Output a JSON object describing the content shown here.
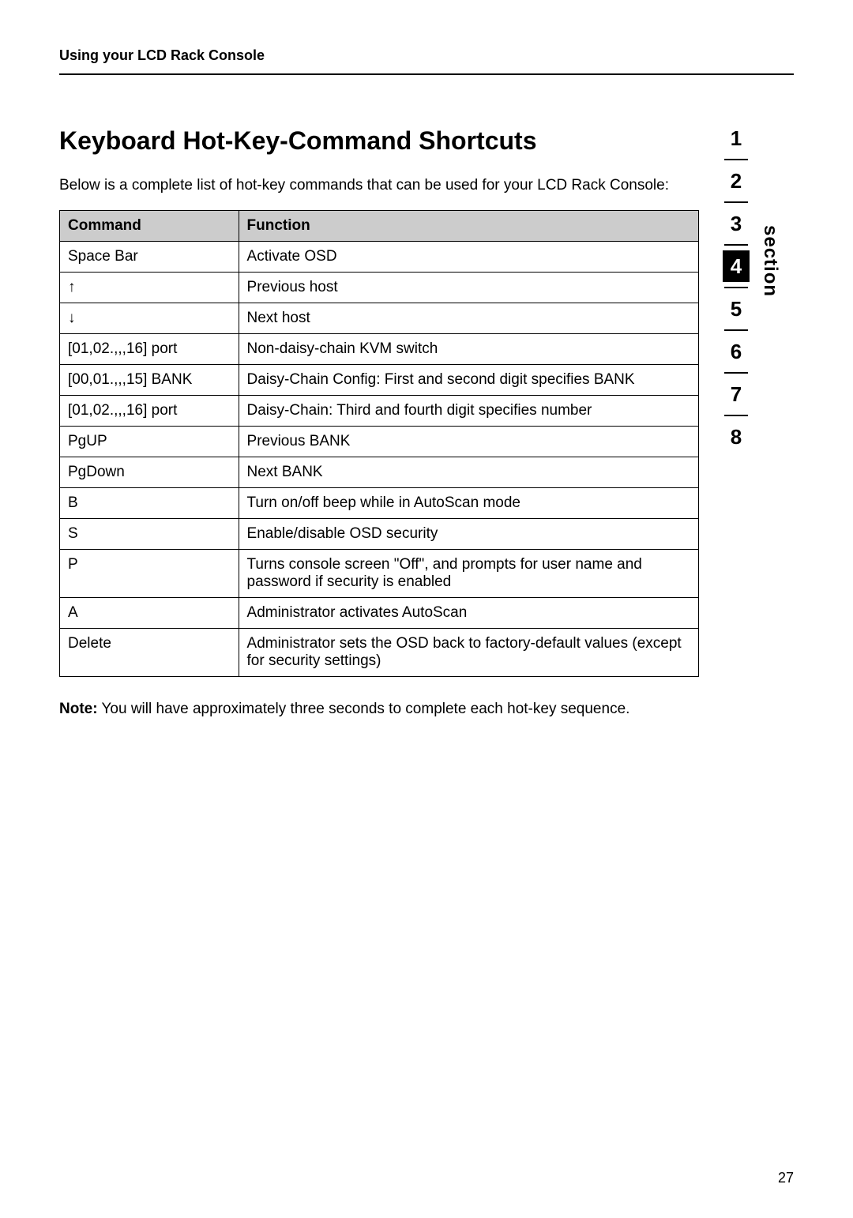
{
  "header": {
    "title": "Using your LCD Rack Console"
  },
  "main": {
    "title": "Keyboard Hot-Key-Command Shortcuts",
    "intro": "Below is a complete list of hot-key commands that can be used for your LCD Rack Console:",
    "table": {
      "columns": [
        "Command",
        "Function"
      ],
      "rows": [
        [
          "Space Bar",
          "Activate OSD"
        ],
        [
          "↑",
          "Previous host"
        ],
        [
          "↓",
          "Next host"
        ],
        [
          "[01,02.,,,16] port",
          "Non-daisy-chain KVM switch"
        ],
        [
          "[00,01.,,,15] BANK",
          "Daisy-Chain Config: First and second digit specifies BANK"
        ],
        [
          "[01,02.,,,16] port",
          "Daisy-Chain: Third and fourth digit specifies number"
        ],
        [
          "PgUP",
          "Previous BANK"
        ],
        [
          "PgDown",
          "Next BANK"
        ],
        [
          "B",
          "Turn on/off beep while in AutoScan mode"
        ],
        [
          "S",
          "Enable/disable OSD security"
        ],
        [
          "P",
          "Turns console screen \"Off\", and prompts for user name and password if security is enabled"
        ],
        [
          "A",
          "Administrator activates AutoScan"
        ],
        [
          "Delete",
          "Administrator sets the OSD back to factory-default values (except for security settings)"
        ]
      ]
    },
    "note_label": "Note:",
    "note_text": " You will have approximately three seconds to complete each hot-key sequence."
  },
  "sidebar": {
    "section_label": "section",
    "items": [
      "1",
      "2",
      "3",
      "4",
      "5",
      "6",
      "7",
      "8"
    ],
    "active_index": 3
  },
  "page_number": "27"
}
